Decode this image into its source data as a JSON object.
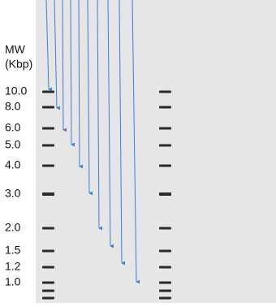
{
  "axis_title": {
    "line1": "MW",
    "line2": "(Kbp)"
  },
  "markers": [
    "10.0",
    "8.0",
    "6.0",
    "5.0",
    "4.0",
    "3.0",
    "2.0",
    "1.5",
    "1.2",
    "1.0"
  ]
}
